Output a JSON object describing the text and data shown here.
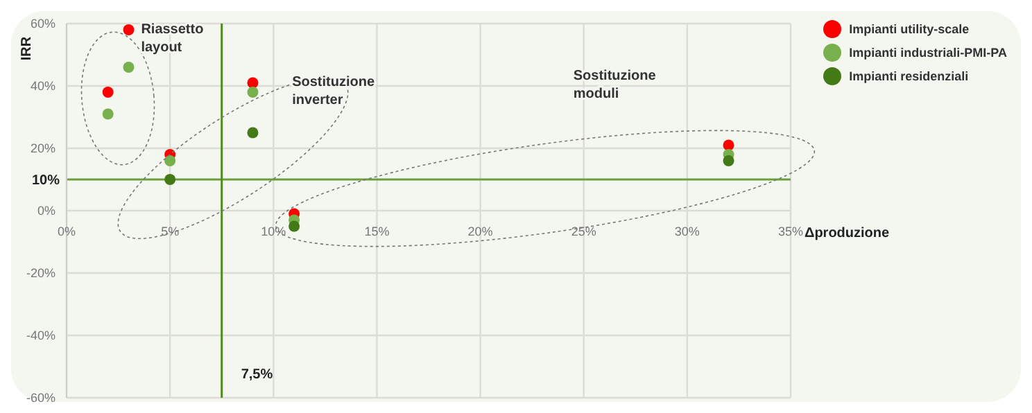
{
  "chart_data": {
    "type": "scatter",
    "xlabel": "Δproduzione",
    "ylabel": "IRR",
    "xlim": [
      0,
      35
    ],
    "ylim": [
      -60,
      60
    ],
    "xticks": [
      {
        "value": 0,
        "label": "0%"
      },
      {
        "value": 5,
        "label": "5%"
      },
      {
        "value": 10,
        "label": "10%"
      },
      {
        "value": 15,
        "label": "15%"
      },
      {
        "value": 20,
        "label": "20%"
      },
      {
        "value": 25,
        "label": "25%"
      },
      {
        "value": 30,
        "label": "30%"
      },
      {
        "value": 35,
        "label": "35%"
      }
    ],
    "yticks": [
      {
        "value": -60,
        "label": "-60%"
      },
      {
        "value": -40,
        "label": "-40%"
      },
      {
        "value": -20,
        "label": "-20%"
      },
      {
        "value": 0,
        "label": "0%"
      },
      {
        "value": 20,
        "label": "20%"
      },
      {
        "value": 40,
        "label": "40%"
      },
      {
        "value": 60,
        "label": "60%"
      }
    ],
    "grid": true,
    "legend": "top right",
    "marker": "circle",
    "series": [
      {
        "name": "Impianti utility-scale",
        "color": "#ff0000",
        "x": [
          3,
          2,
          5,
          9,
          11,
          32
        ],
        "values": [
          58,
          38,
          18,
          41,
          -1,
          21
        ]
      },
      {
        "name": "Impianti industriali-PMI-PA",
        "color": "#77b04d",
        "x": [
          3,
          2,
          5,
          9,
          11,
          32
        ],
        "values": [
          46,
          31,
          16,
          38,
          -3,
          18
        ]
      },
      {
        "name": "Impianti residenziali",
        "color": "#437a16",
        "x": [
          5,
          9,
          11,
          32
        ],
        "values": [
          10,
          25,
          -5,
          16
        ]
      }
    ],
    "ref_lines": [
      {
        "axis": "y",
        "value": 10,
        "label": "10%",
        "color": "#6a9f3c"
      },
      {
        "axis": "x",
        "value": 7.5,
        "label": "7,5%",
        "color": "#4f8a1f"
      }
    ],
    "annotations": [
      "Riassetto layout",
      "Sostituzione inverter",
      "Sostituzione moduli"
    ]
  }
}
